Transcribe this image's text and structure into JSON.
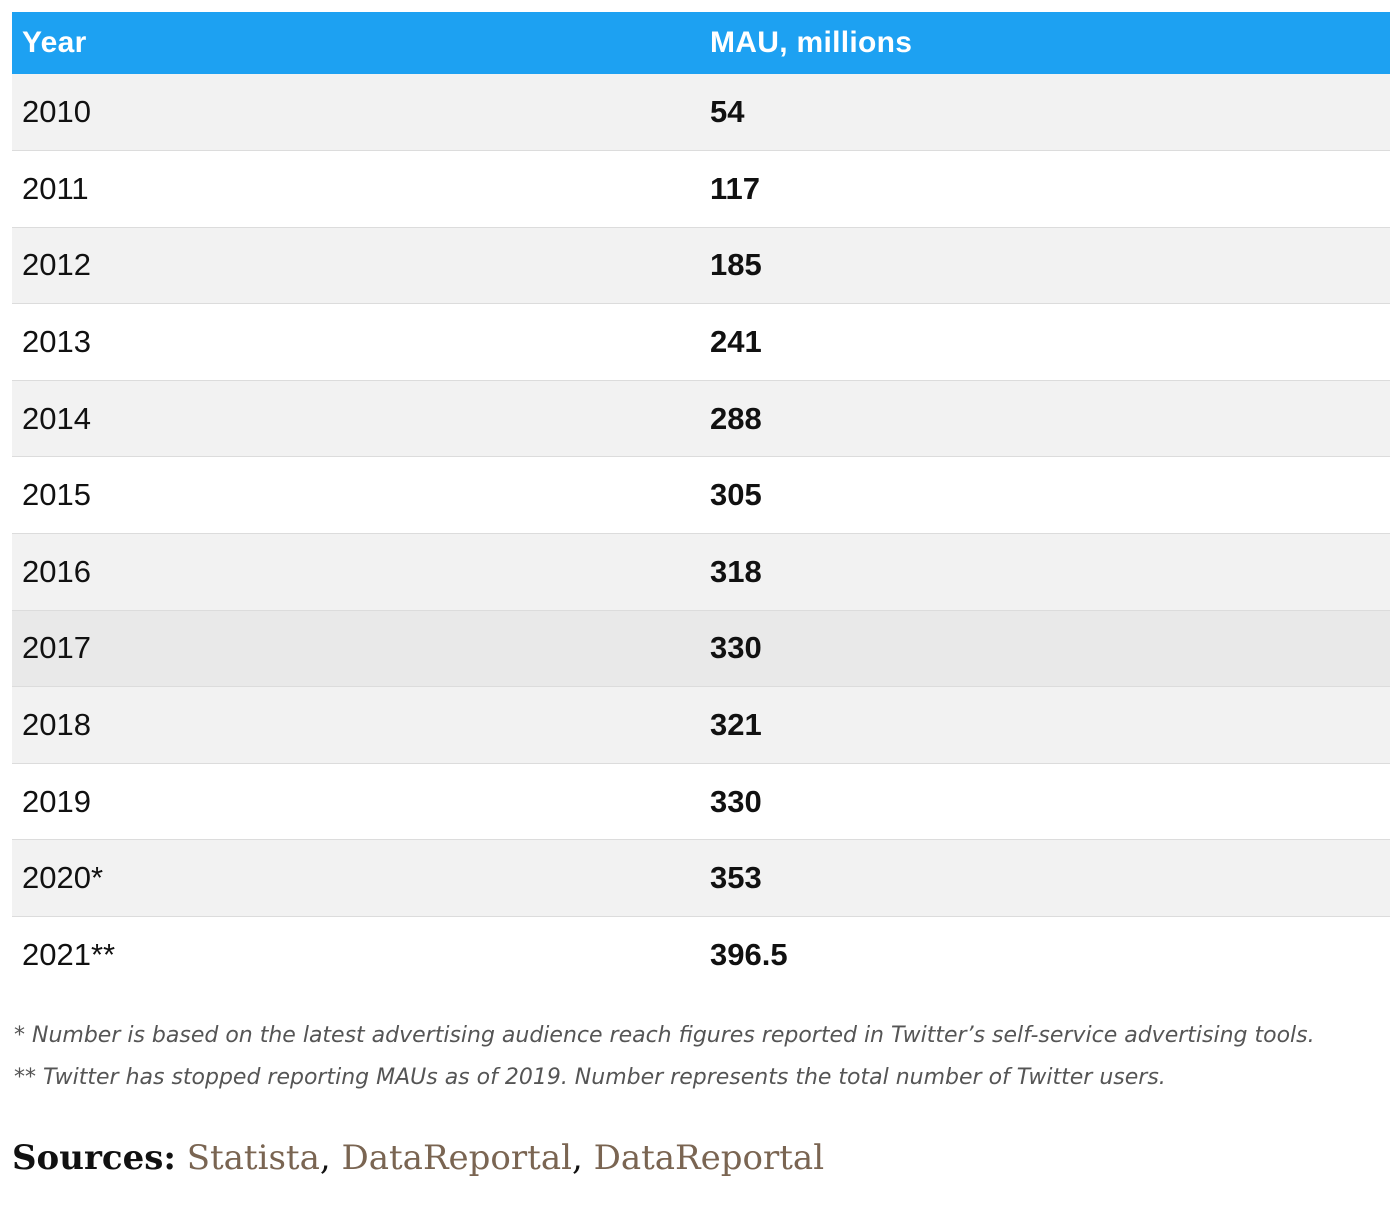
{
  "table": {
    "headers": {
      "year": "Year",
      "mau": "MAU, millions"
    },
    "rows": [
      {
        "year": "2010",
        "mau": "54"
      },
      {
        "year": "2011",
        "mau": "117"
      },
      {
        "year": "2012",
        "mau": "185"
      },
      {
        "year": "2013",
        "mau": "241"
      },
      {
        "year": "2014",
        "mau": "288"
      },
      {
        "year": "2015",
        "mau": "305"
      },
      {
        "year": "2016",
        "mau": "318"
      },
      {
        "year": "2017",
        "mau": "330"
      },
      {
        "year": "2018",
        "mau": "321"
      },
      {
        "year": "2019",
        "mau": "330"
      },
      {
        "year": "2020*",
        "mau": "353"
      },
      {
        "year": "2021**",
        "mau": "396.5"
      }
    ],
    "header_color": "#1da1f2"
  },
  "notes": {
    "note1": "* Number is based on the latest advertising audience reach figures reported in Twitter’s self-service advertising tools.",
    "note2": "** Twitter has stopped reporting MAUs as of 2019. Number represents the total number of Twitter users."
  },
  "sources": {
    "label": "Sources:",
    "links": [
      "Statista",
      "DataReportal",
      "DataReportal"
    ],
    "separator": ", ",
    "link_color": "#7a6552"
  }
}
